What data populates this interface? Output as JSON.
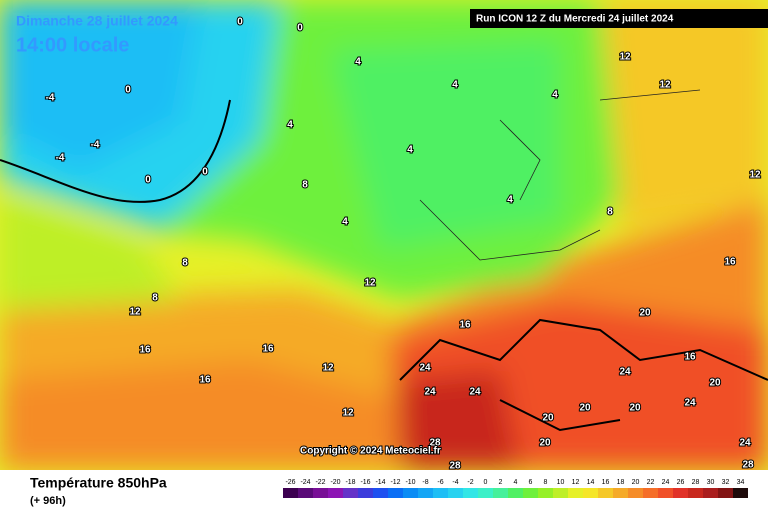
{
  "header": {
    "date": "Dimanche 28 juillet 2024",
    "time": "14:00 locale",
    "run": "Run ICON 12 Z du Mercredi 24 juillet 2024"
  },
  "copyright": "Copyright © 2024 Meteociel.fr",
  "footer": {
    "title": "Température 850hPa",
    "lead": "(+ 96h)"
  },
  "scale": {
    "labels": [
      -26,
      -24,
      -22,
      -20,
      -18,
      -16,
      -14,
      -12,
      -10,
      -8,
      -6,
      -4,
      -2,
      0,
      2,
      4,
      6,
      8,
      10,
      12,
      14,
      16,
      18,
      20,
      22,
      24,
      26,
      28,
      30,
      32,
      34
    ],
    "colors": [
      "#3c0050",
      "#5a0a78",
      "#780f96",
      "#8c14b4",
      "#6432c8",
      "#3c3cdc",
      "#1e50f0",
      "#0a6ef5",
      "#0a8cf5",
      "#14a5f5",
      "#1ebef5",
      "#28d2f0",
      "#32e6e6",
      "#3cf0c8",
      "#46f09b",
      "#50f064",
      "#6ef03c",
      "#96f028",
      "#beef28",
      "#e6f028",
      "#f5e628",
      "#f5c828",
      "#f5aa28",
      "#f58c28",
      "#f56e28",
      "#f05028",
      "#e13228",
      "#c8281e",
      "#aa1e1e",
      "#821414",
      "#1e0a0a"
    ]
  },
  "map_labels": [
    -4,
    -4,
    -4,
    0,
    0,
    0,
    0,
    0,
    4,
    4,
    4,
    4,
    4,
    4,
    4,
    8,
    8,
    8,
    8,
    12,
    12,
    12,
    12,
    12,
    12,
    12,
    16,
    16,
    16,
    16,
    16,
    16,
    20,
    20,
    20,
    20,
    20,
    20,
    24,
    24,
    24,
    24,
    24,
    24,
    28,
    28,
    28
  ]
}
